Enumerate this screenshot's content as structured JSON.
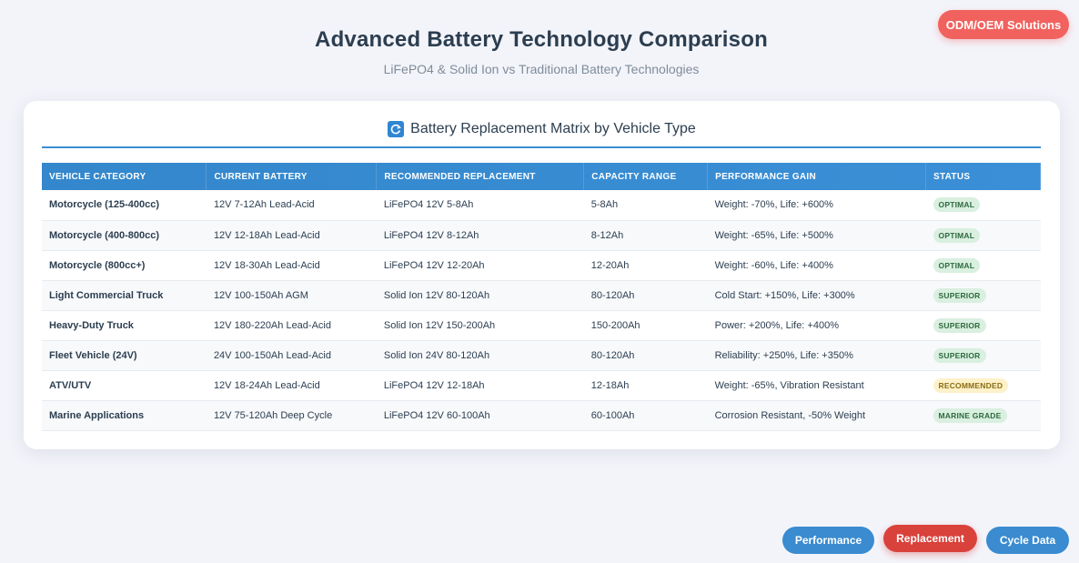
{
  "header": {
    "title": "Advanced Battery Technology Comparison",
    "subtitle": "LiFePO4 & Solid Ion vs Traditional Battery Technologies",
    "odm_button": "ODM/OEM Solutions"
  },
  "matrix": {
    "title": "Battery Replacement Matrix by Vehicle Type",
    "icon": "refresh-icon",
    "columns": [
      "VEHICLE CATEGORY",
      "CURRENT BATTERY",
      "RECOMMENDED REPLACEMENT",
      "CAPACITY RANGE",
      "PERFORMANCE GAIN",
      "STATUS"
    ],
    "rows": [
      {
        "category": "Motorcycle (125-400cc)",
        "current": "12V 7-12Ah Lead-Acid",
        "replacement": "LiFePO4 12V 5-8Ah",
        "capacity": "5-8Ah",
        "gain": "Weight: -70%, Life: +600%",
        "status": "OPTIMAL"
      },
      {
        "category": "Motorcycle (400-800cc)",
        "current": "12V 12-18Ah Lead-Acid",
        "replacement": "LiFePO4 12V 8-12Ah",
        "capacity": "8-12Ah",
        "gain": "Weight: -65%, Life: +500%",
        "status": "OPTIMAL"
      },
      {
        "category": "Motorcycle (800cc+)",
        "current": "12V 18-30Ah Lead-Acid",
        "replacement": "LiFePO4 12V 12-20Ah",
        "capacity": "12-20Ah",
        "gain": "Weight: -60%, Life: +400%",
        "status": "OPTIMAL"
      },
      {
        "category": "Light Commercial Truck",
        "current": "12V 100-150Ah AGM",
        "replacement": "Solid Ion 12V 80-120Ah",
        "capacity": "80-120Ah",
        "gain": "Cold Start: +150%, Life: +300%",
        "status": "SUPERIOR"
      },
      {
        "category": "Heavy-Duty Truck",
        "current": "12V 180-220Ah Lead-Acid",
        "replacement": "Solid Ion 12V 150-200Ah",
        "capacity": "150-200Ah",
        "gain": "Power: +200%, Life: +400%",
        "status": "SUPERIOR"
      },
      {
        "category": "Fleet Vehicle (24V)",
        "current": "24V 100-150Ah Lead-Acid",
        "replacement": "Solid Ion 24V 80-120Ah",
        "capacity": "80-120Ah",
        "gain": "Reliability: +250%, Life: +350%",
        "status": "SUPERIOR"
      },
      {
        "category": "ATV/UTV",
        "current": "12V 18-24Ah Lead-Acid",
        "replacement": "LiFePO4 12V 12-18Ah",
        "capacity": "12-18Ah",
        "gain": "Weight: -65%, Vibration Resistant",
        "status": "RECOMMENDED"
      },
      {
        "category": "Marine Applications",
        "current": "12V 75-120Ah Deep Cycle",
        "replacement": "LiFePO4 12V 60-100Ah",
        "capacity": "60-100Ah",
        "gain": "Corrosion Resistant, -50% Weight",
        "status": "MARINE GRADE"
      }
    ]
  },
  "nav": {
    "performance": "Performance",
    "replacement": "Replacement",
    "cycle": "Cycle Data"
  },
  "colors": {
    "accent": "#3a8bd0",
    "danger": "#d9413b",
    "positive": "#27ae60"
  }
}
